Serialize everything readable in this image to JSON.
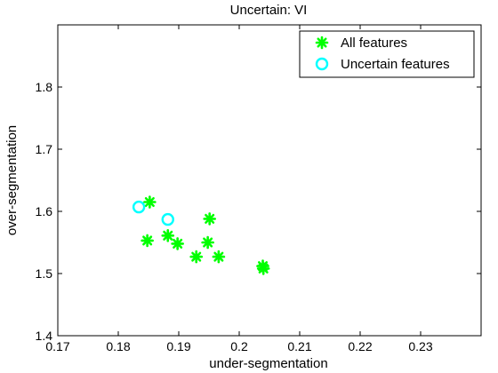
{
  "chart_data": {
    "type": "scatter",
    "title": "Uncertain: VI",
    "xlabel": "under-segmentation",
    "ylabel": "over-segmentation",
    "xlim": [
      0.17,
      0.24
    ],
    "ylim": [
      1.4,
      1.9
    ],
    "xticks": [
      0.17,
      0.18,
      0.19,
      0.2,
      0.21,
      0.22,
      0.23
    ],
    "xtick_labels": [
      "0.17",
      "0.18",
      "0.19",
      "0.2",
      "0.21",
      "0.22",
      "0.23"
    ],
    "yticks": [
      1.4,
      1.5,
      1.6,
      1.7,
      1.8
    ],
    "ytick_labels": [
      "1.4",
      "1.5",
      "1.6",
      "1.7",
      "1.8"
    ],
    "grid": false,
    "legend_position": "top-right",
    "series": [
      {
        "name": "All features",
        "marker": "asterisk",
        "color": "#00ff00",
        "points": [
          [
            0.1852,
            1.615
          ],
          [
            0.1848,
            1.553
          ],
          [
            0.1882,
            1.561
          ],
          [
            0.1898,
            1.548
          ],
          [
            0.1929,
            1.527
          ],
          [
            0.1948,
            1.55
          ],
          [
            0.1951,
            1.588
          ],
          [
            0.1966,
            1.527
          ],
          [
            0.2039,
            1.512
          ],
          [
            0.204,
            1.508
          ]
        ]
      },
      {
        "name": "Uncertain features",
        "marker": "circle",
        "color": "#00ffff",
        "points": [
          [
            0.1834,
            1.607
          ],
          [
            0.1882,
            1.587
          ]
        ]
      }
    ]
  }
}
